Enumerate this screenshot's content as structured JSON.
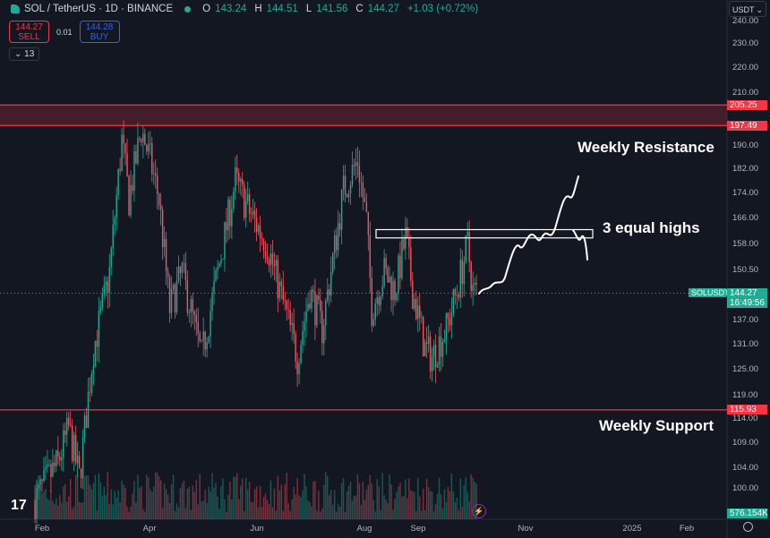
{
  "header": {
    "symbol_title": "SOL / TetherUS · 1D · BINANCE",
    "ohlc": [
      {
        "k": "O",
        "v": "143.24"
      },
      {
        "k": "H",
        "v": "144.51"
      },
      {
        "k": "L",
        "v": "141.56"
      },
      {
        "k": "C",
        "v": "144.27"
      }
    ],
    "change": "+1.03 (+0.72%)"
  },
  "trade": {
    "sell_price": "144.27",
    "sell_label": "SELL",
    "spread": "0.01",
    "buy_price": "144.28",
    "buy_label": "BUY"
  },
  "indicators_toggle": "13",
  "currency": "USDT",
  "annotations": {
    "resistance": "Weekly Resistance",
    "equal_highs": "3 equal highs",
    "support": "Weekly Support"
  },
  "levels": {
    "resistance_top": "205.25",
    "resistance_bottom": "197.49",
    "support": "115.93"
  },
  "last_price": {
    "symbol": "SOLUSDT",
    "price": "144.27",
    "countdown": "16:49:56"
  },
  "volume_label": "576.154K",
  "colors": {
    "up": "#22ab94",
    "down": "#f7525f",
    "level": "#f23645",
    "background": "#131722"
  },
  "chart_data": {
    "type": "candlestick",
    "y_scale": "log",
    "y_ticks": [
      "240.00",
      "230.00",
      "220.00",
      "210.00",
      "190.00",
      "182.00",
      "174.00",
      "166.00",
      "158.00",
      "150.50",
      "137.00",
      "131.00",
      "125.00",
      "119.00",
      "114.00",
      "109.00",
      "104.00",
      "100.00"
    ],
    "x_ticks": [
      "Feb",
      "Apr",
      "Jun",
      "Aug",
      "Sep",
      "Nov",
      "2025",
      "Feb"
    ],
    "close_path": [
      [
        "2024-01-28",
        98
      ],
      [
        "2024-02-10",
        105
      ],
      [
        "2024-02-16",
        112
      ],
      [
        "2024-02-22",
        102
      ],
      [
        "2024-03-01",
        130
      ],
      [
        "2024-03-05",
        138
      ],
      [
        "2024-03-10",
        150
      ],
      [
        "2024-03-17",
        192
      ],
      [
        "2024-03-21",
        172
      ],
      [
        "2024-03-28",
        196
      ],
      [
        "2024-04-02",
        185
      ],
      [
        "2024-04-07",
        172
      ],
      [
        "2024-04-13",
        140
      ],
      [
        "2024-04-20",
        150
      ],
      [
        "2024-05-01",
        128
      ],
      [
        "2024-05-10",
        150
      ],
      [
        "2024-05-20",
        178
      ],
      [
        "2024-05-28",
        168
      ],
      [
        "2024-06-07",
        158
      ],
      [
        "2024-06-17",
        140
      ],
      [
        "2024-06-24",
        128
      ],
      [
        "2024-07-01",
        145
      ],
      [
        "2024-07-08",
        135
      ],
      [
        "2024-07-20",
        175
      ],
      [
        "2024-07-28",
        185
      ],
      [
        "2024-08-02",
        165
      ],
      [
        "2024-08-05",
        140
      ],
      [
        "2024-08-12",
        150
      ],
      [
        "2024-08-18",
        145
      ],
      [
        "2024-08-24",
        160
      ],
      [
        "2024-08-28",
        145
      ],
      [
        "2024-09-04",
        130
      ],
      [
        "2024-09-08",
        128
      ],
      [
        "2024-09-16",
        135
      ],
      [
        "2024-09-22",
        145
      ],
      [
        "2024-09-28",
        158
      ],
      [
        "2024-10-01",
        145
      ],
      [
        "2024-10-03",
        144.27
      ]
    ],
    "horizontal_levels": [
      205.25,
      197.49,
      115.93
    ],
    "equal_highs_zone": [
      160,
      162.5
    ]
  }
}
